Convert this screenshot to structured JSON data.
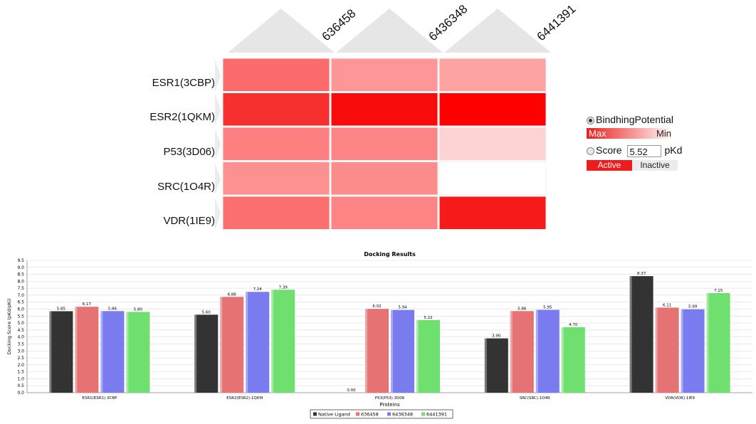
{
  "heatmap": {
    "columns": [
      "636458",
      "6436348",
      "6441391"
    ],
    "rows": [
      "ESR1(3CBP)",
      "ESR2(1QKM)",
      "P53(3D06)",
      "SRC(1O4R)",
      "VDR(1IE9)"
    ],
    "cell_colors": [
      [
        "#fb6b6b",
        "#fd9696",
        "#fea2a2"
      ],
      [
        "#f62f2f",
        "#f70b0b",
        "#ff0000"
      ],
      [
        "#fd7f7f",
        "#fd8585",
        "#fed3d3"
      ],
      [
        "#fd9090",
        "#fd8d8d",
        "#ffffff"
      ],
      [
        "#fb6f6f",
        "#fd8585",
        "#f61a1a"
      ]
    ]
  },
  "legend": {
    "binding_label": "BindhingPotential",
    "max_label": "Max",
    "min_label": "Min",
    "score_label": "Score",
    "score_value": "5.52",
    "unit": "pKd",
    "active_label": "Active",
    "inactive_label": "Inactive"
  },
  "chart_data": {
    "type": "bar",
    "title": "Docking Results",
    "xlabel": "Proteins",
    "ylabel": "Docking Score (pKd/pKi)",
    "ylim": [
      0,
      9.5
    ],
    "ytick_step": 0.5,
    "grid": true,
    "legend_position": "bottom",
    "categories": [
      "ESR1(ESR1).3CBP",
      "ESR2(ESR2).1QKM",
      "P53(P53).3D06",
      "SRC(SRC).1O4R",
      "VDR(VDR).1IE9"
    ],
    "series": [
      {
        "name": "Native Ligand",
        "color": "#333333",
        "values": [
          5.85,
          5.6,
          0.0,
          3.9,
          8.37
        ]
      },
      {
        "name": "636458",
        "color": "#e57373",
        "values": [
          6.17,
          6.88,
          6.02,
          5.86,
          6.11
        ]
      },
      {
        "name": "6436348",
        "color": "#7b7bf0",
        "values": [
          5.86,
          7.24,
          5.94,
          5.95,
          5.99
        ]
      },
      {
        "name": "6441391",
        "color": "#6fe06f",
        "values": [
          5.8,
          7.39,
          5.22,
          4.7,
          7.15
        ]
      }
    ],
    "data_labels": [
      [
        "5.85",
        "5.60",
        "0.00",
        "3.90",
        "8.37"
      ],
      [
        "6.17",
        "6.88",
        "6.02",
        "5.86",
        "6.11"
      ],
      [
        "5.86",
        "7.24",
        "5.94",
        "5.95",
        "5.99"
      ],
      [
        "5.80",
        "7.39",
        "5.22",
        "4.70",
        "7.15"
      ]
    ]
  }
}
